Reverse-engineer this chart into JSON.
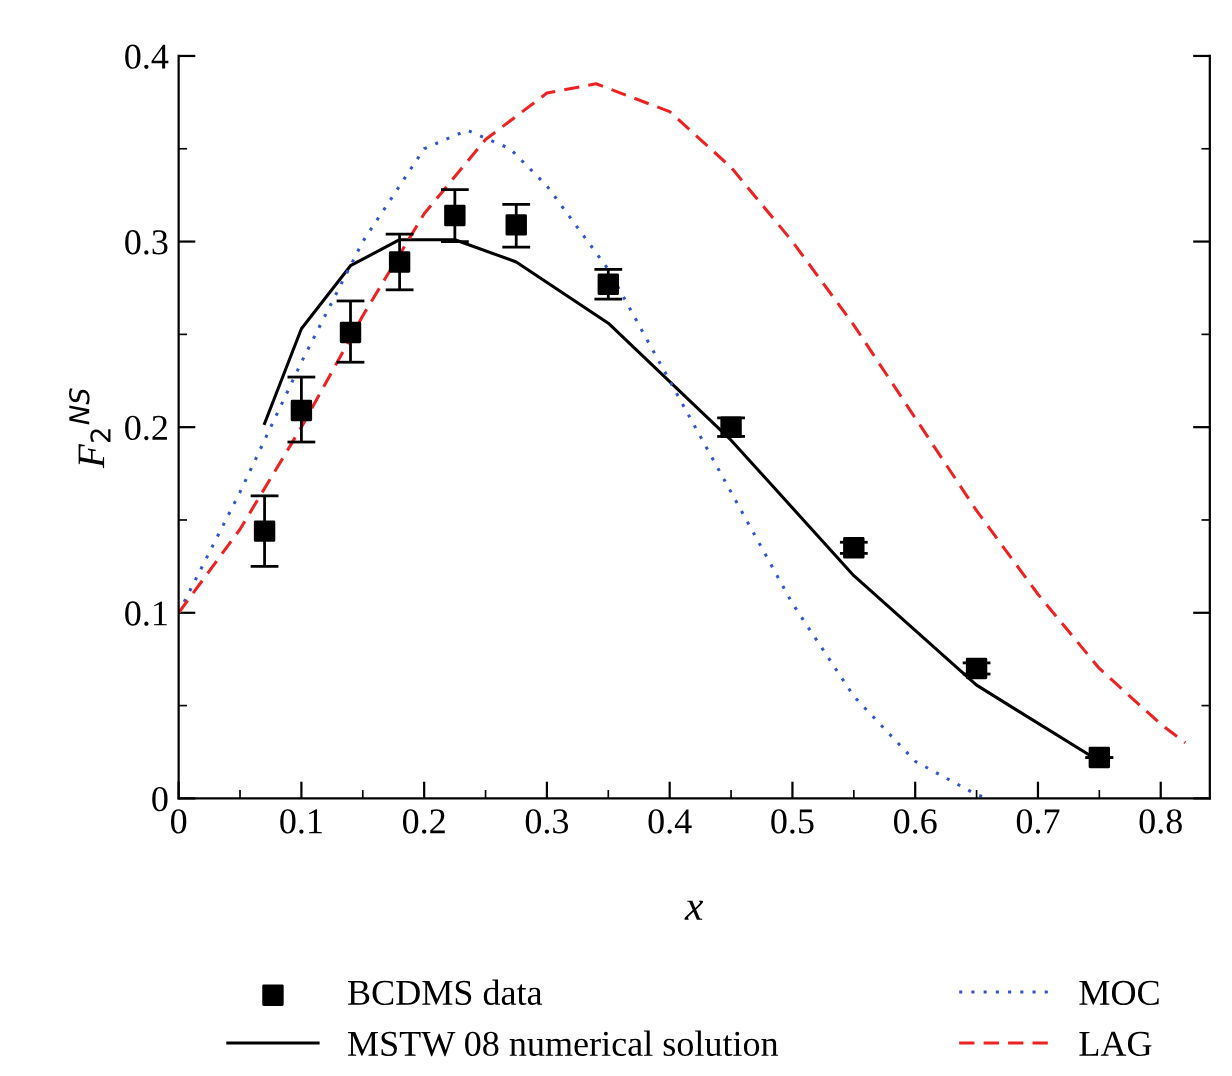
{
  "chart_data": {
    "type": "line",
    "xlabel": "x",
    "ylabel": "F$_{2}$$^{NS}$",
    "xlim": [
      0,
      0.84
    ],
    "ylim": [
      0,
      0.4
    ],
    "xticks": [
      0,
      0.1,
      0.2,
      0.3,
      0.4,
      0.5,
      0.6,
      0.7,
      0.8
    ],
    "yticks": [
      0,
      0.1,
      0.2,
      0.3,
      0.4
    ],
    "grid": false,
    "legend": "bottom",
    "series": [
      {
        "name": "BCDMS data",
        "type": "scatter",
        "marker": "square",
        "color": "#000000",
        "x": [
          0.07,
          0.1,
          0.14,
          0.18,
          0.225,
          0.275,
          0.35,
          0.45,
          0.55,
          0.65,
          0.75
        ],
        "values": [
          0.144,
          0.209,
          0.251,
          0.289,
          0.314,
          0.309,
          0.277,
          0.2,
          0.135,
          0.07,
          0.022
        ],
        "errors": [
          [
            0.125,
            0.163
          ],
          [
            0.192,
            0.227
          ],
          [
            0.235,
            0.268
          ],
          [
            0.274,
            0.304
          ],
          [
            0.3,
            0.328
          ],
          [
            0.297,
            0.32
          ],
          [
            0.269,
            0.285
          ],
          [
            0.195,
            0.205
          ],
          [
            0.132,
            0.138
          ],
          [
            0.067,
            0.073
          ],
          null
        ]
      },
      {
        "name": "MSTW 08 numerical solution",
        "line_style": "solid",
        "color": "#000000",
        "x": [
          0.07,
          0.1,
          0.14,
          0.18,
          0.225,
          0.275,
          0.35,
          0.45,
          0.55,
          0.65,
          0.75
        ],
        "values": [
          0.202,
          0.253,
          0.287,
          0.301,
          0.301,
          0.289,
          0.256,
          0.193,
          0.12,
          0.061,
          0.02
        ]
      },
      {
        "name": "MOC",
        "line_style": "dotted",
        "color": "#3355cc",
        "x": [
          0,
          0.05,
          0.1,
          0.15,
          0.2,
          0.235,
          0.27,
          0.3,
          0.35,
          0.4,
          0.45,
          0.5,
          0.55,
          0.6,
          0.65,
          0.66
        ],
        "values": [
          0.1,
          0.165,
          0.235,
          0.3,
          0.35,
          0.36,
          0.35,
          0.33,
          0.285,
          0.225,
          0.165,
          0.105,
          0.055,
          0.02,
          0.002,
          0
        ]
      },
      {
        "name": "LAG",
        "line_style": "dashed",
        "color": "#ee2222",
        "x": [
          0,
          0.05,
          0.1,
          0.15,
          0.2,
          0.25,
          0.3,
          0.34,
          0.4,
          0.45,
          0.5,
          0.55,
          0.6,
          0.65,
          0.7,
          0.75,
          0.8,
          0.82
        ],
        "values": [
          0.1,
          0.145,
          0.2,
          0.26,
          0.315,
          0.355,
          0.38,
          0.385,
          0.37,
          0.34,
          0.3,
          0.255,
          0.205,
          0.155,
          0.11,
          0.07,
          0.04,
          0.03
        ]
      }
    ]
  }
}
